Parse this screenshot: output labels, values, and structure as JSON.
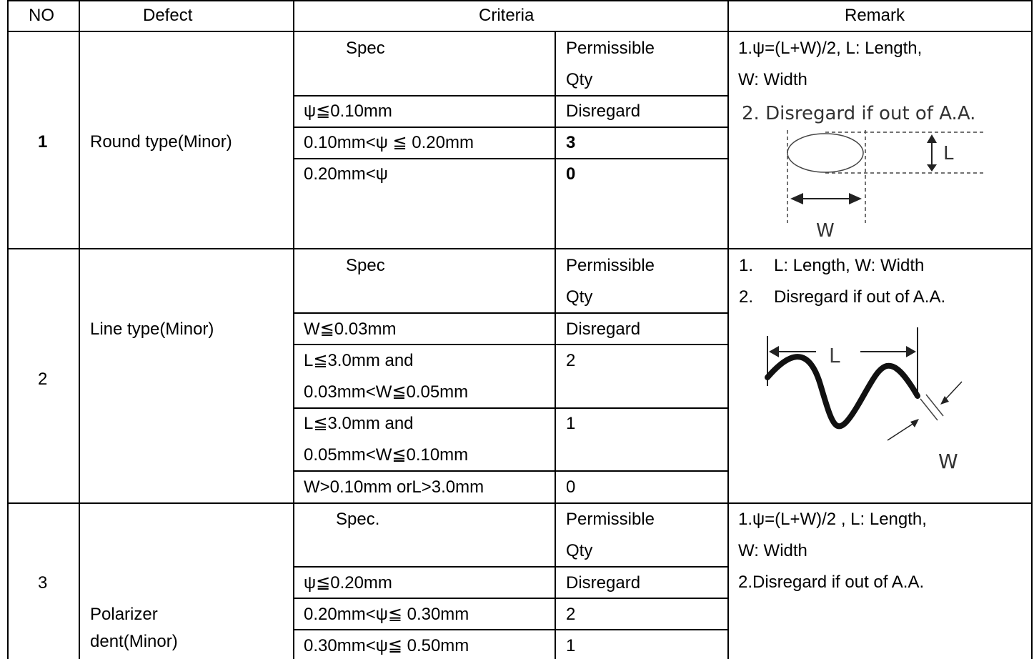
{
  "header": {
    "no": "NO",
    "defect": "Defect",
    "criteria": "Criteria",
    "remark": "Remark"
  },
  "rows": [
    {
      "no": "1",
      "defect": "Round type(Minor)",
      "spec_header": "Spec",
      "qty_header": [
        "Permissible",
        "Qty"
      ],
      "criteria": [
        {
          "spec": [
            "ψ≦0.10mm"
          ],
          "qty": "Disregard"
        },
        {
          "spec": [
            "0.10mm<ψ ≦ 0.20mm"
          ],
          "qty": "3"
        },
        {
          "spec": [
            "0.20mm<ψ"
          ],
          "qty": "0"
        }
      ],
      "remark": [
        "1.ψ=(L+W)/2, L: Length,",
        "W: Width"
      ],
      "figure": {
        "caption": "2. Disregard if out of A.A.",
        "label_l": "L",
        "label_w": "W"
      }
    },
    {
      "no": "2",
      "defect": "Line type(Minor)",
      "spec_header": "Spec",
      "qty_header": [
        "Permissible",
        "Qty"
      ],
      "criteria": [
        {
          "spec": [
            "W≦0.03mm"
          ],
          "qty": "Disregard"
        },
        {
          "spec": [
            "L≦3.0mm and",
            "0.03mm<W≦0.05mm"
          ],
          "qty": "2"
        },
        {
          "spec": [
            "L≦3.0mm and",
            "0.05mm<W≦0.10mm"
          ],
          "qty": "1"
        },
        {
          "spec": [
            "W>0.10mm orL>3.0mm"
          ],
          "qty": "0"
        }
      ],
      "remark": [
        "1.",
        "L: Length, W: Width",
        "2.",
        "Disregard if out of A.A."
      ],
      "figure": {
        "label_l": "L",
        "label_w": "W"
      }
    },
    {
      "no": "3",
      "defect": [
        "Polarizer",
        "dent(Minor)"
      ],
      "spec_header": "Spec.",
      "qty_header": [
        "Permissible",
        "Qty"
      ],
      "criteria": [
        {
          "spec": [
            "ψ≦0.20mm"
          ],
          "qty": "Disregard"
        },
        {
          "spec": [
            "0.20mm<ψ≦ 0.30mm"
          ],
          "qty": "2"
        },
        {
          "spec": [
            "0.30mm<ψ≦ 0.50mm"
          ],
          "qty": "1"
        }
      ],
      "remark": [
        "1.ψ=(L+W)/2 , L: Length,",
        "W: Width",
        "2.Disregard if out of A.A."
      ]
    }
  ]
}
